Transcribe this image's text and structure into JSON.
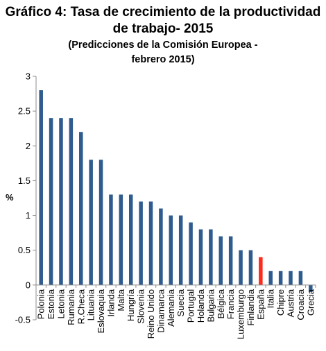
{
  "title": "Gráfico 4: Tasa de crecimiento de la productividad de trabajo- 2015",
  "subtitle_line1": "(Predicciones de la Comisión Europea -",
  "subtitle_line2": "febrero 2015)",
  "chart_data": {
    "type": "bar",
    "title": "Gráfico 4: Tasa de crecimiento de la productividad de trabajo- 2015",
    "subtitle": "(Predicciones de la Comisión Europea - febrero 2015)",
    "xlabel": "",
    "ylabel": "%",
    "ylim": [
      -0.5,
      3
    ],
    "yticks": [
      3,
      2.5,
      2,
      1.5,
      1,
      0.5,
      0,
      -0.5
    ],
    "ytick_labels": [
      "3",
      "2.5",
      "2",
      "1.5",
      "1",
      "0.5",
      "0",
      "-0.5"
    ],
    "grid": false,
    "legend": "none",
    "bar_color": "#2f5b8f",
    "highlight_color": "#ff2a1a",
    "highlight_category": "España",
    "categories": [
      "Polonia",
      "Estonia",
      "Letonia",
      "Rumania",
      "R.Checa",
      "Lituania",
      "Eslovaquia",
      "Irlanda",
      "Malta",
      "Hungría",
      "Slovenia",
      "Reino Unido",
      "Dinamarca",
      "Alemania",
      "Suecia",
      "Portugal",
      "Holanda",
      "Bulgaria",
      "Bélgica",
      "Francia",
      "Luxemburgo",
      "Finlandia",
      "España",
      "Italia",
      "Chipre",
      "Austria",
      "Croacia",
      "Grecia"
    ],
    "values": [
      2.8,
      2.4,
      2.4,
      2.4,
      2.2,
      1.8,
      1.8,
      1.3,
      1.3,
      1.3,
      1.2,
      1.2,
      1.1,
      1.0,
      1.0,
      0.9,
      0.8,
      0.8,
      0.7,
      0.7,
      0.5,
      0.5,
      0.4,
      0.2,
      0.2,
      0.2,
      0.2,
      -0.1
    ]
  }
}
